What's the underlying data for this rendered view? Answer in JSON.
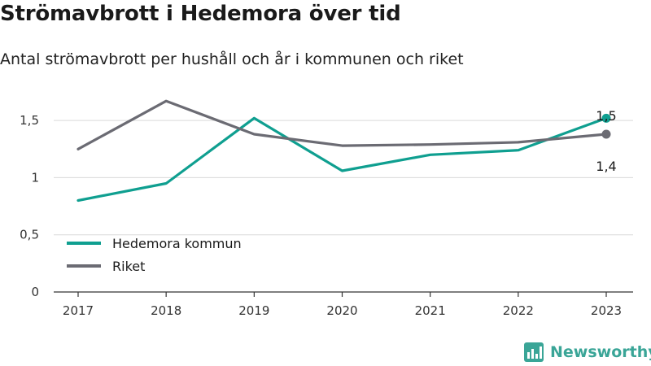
{
  "header": {
    "title": "Strömavbrott i Hedemora över tid",
    "subtitle": "Antal strömavbrott per hushåll och år i kommunen och riket"
  },
  "brand": {
    "name": "Newsworthy",
    "icon": "bar-chart-logo-icon",
    "color": "#3aa597"
  },
  "chart_data": {
    "type": "line",
    "categories": [
      "2017",
      "2018",
      "2019",
      "2020",
      "2021",
      "2022",
      "2023"
    ],
    "series": [
      {
        "name": "Hedemora kommun",
        "color": "#0f9f90",
        "values": [
          0.8,
          0.95,
          1.52,
          1.06,
          1.2,
          1.24,
          1.52
        ]
      },
      {
        "name": "Riket",
        "color": "#6b6b73",
        "values": [
          1.25,
          1.67,
          1.38,
          1.28,
          1.29,
          1.31,
          1.38
        ]
      }
    ],
    "yticks": [
      "0",
      "0,5",
      "1",
      "1,5"
    ],
    "ylim": [
      0,
      1.75
    ],
    "grid": true,
    "legend_position": "bottom-left",
    "end_labels": [
      "1,5",
      "1,4"
    ]
  }
}
